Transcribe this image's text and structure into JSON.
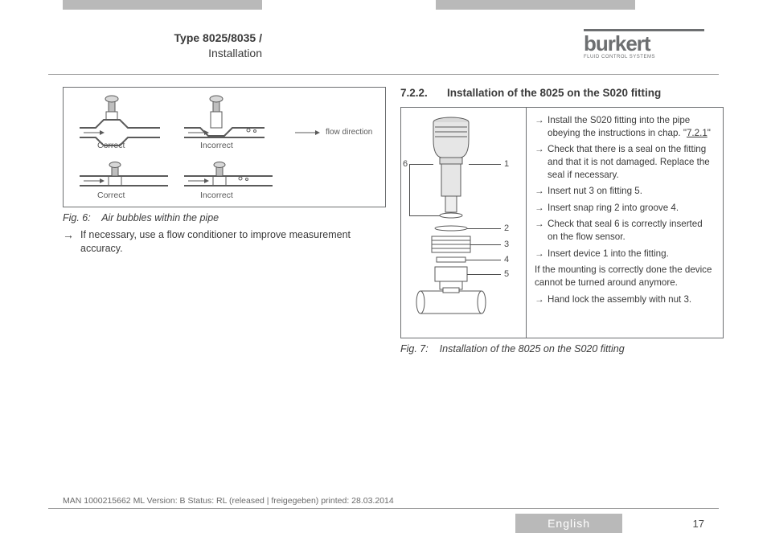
{
  "header": {
    "type_label": "Type 8025/8035 /",
    "sub_label": "Installation",
    "brand": "burkert",
    "brand_tag": "FLUID CONTROL SYSTEMS"
  },
  "fig6": {
    "caption_prefix": "Fig. 6:",
    "caption_text": "Air bubbles within the pipe",
    "bullet": "If necessary, use a flow conditioner to improve measurement accuracy.",
    "labels": {
      "correct": "Correct",
      "incorrect": "Incorrect",
      "flow_direction": "flow direction"
    }
  },
  "section": {
    "number": "7.2.2.",
    "title": "Installation of the 8025 on the S020 fitting"
  },
  "fig7": {
    "callouts": [
      "1",
      "2",
      "3",
      "4",
      "5",
      "6"
    ],
    "steps": [
      {
        "arrow": true,
        "text_pre": "Install the S020 fitting into the pipe obeying the instructions in chap. \"",
        "link": "7.2.1",
        "text_post": "\""
      },
      {
        "arrow": true,
        "text": "Check that there is a seal on the fitting and that it is not damaged. Replace the seal if necessary."
      },
      {
        "arrow": true,
        "text": "Insert nut 3 on fitting 5."
      },
      {
        "arrow": true,
        "text": "Insert snap ring 2 into groove 4."
      },
      {
        "arrow": true,
        "text": "Check that seal 6 is correctly inserted on the flow sensor."
      },
      {
        "arrow": true,
        "text": "Insert device 1 into the fitting."
      },
      {
        "arrow": false,
        "text": "If the mounting is correctly done the device cannot be turned around anymore."
      },
      {
        "arrow": true,
        "text": "Hand lock the assembly with nut 3."
      }
    ],
    "caption_prefix": "Fig. 7:",
    "caption_text": "Installation of the 8025 on the S020 fitting"
  },
  "footer": {
    "meta": "MAN 1000215662 ML Version: B Status: RL (released | freigegeben) printed: 28.03.2014",
    "language": "English",
    "page": "17"
  },
  "colors": {
    "grey_bar": "#b9b9b9",
    "stroke": "#6d6f71"
  }
}
